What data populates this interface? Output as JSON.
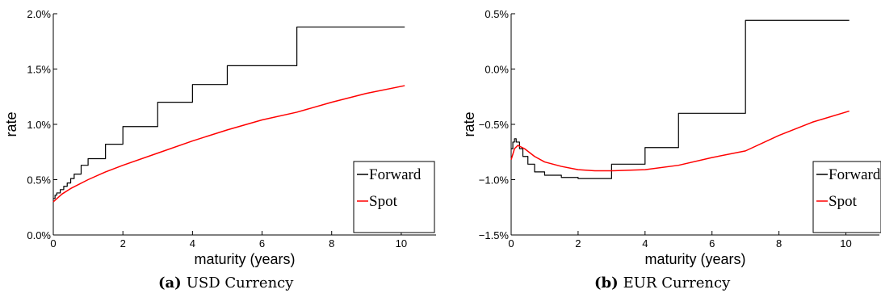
{
  "captions": [
    {
      "tag": "(a)",
      "text": "USD Currency"
    },
    {
      "tag": "(b)",
      "text": "EUR Currency"
    }
  ],
  "chart_data": [
    {
      "type": "line",
      "xlabel": "maturity (years)",
      "ylabel": "rate",
      "xlim": [
        0,
        11
      ],
      "ylim": [
        0.0,
        2.0
      ],
      "xticks": [
        0,
        2,
        4,
        6,
        8,
        10
      ],
      "xtick_labels": [
        "0",
        "2",
        "4",
        "6",
        "8",
        "10"
      ],
      "yticks": [
        0.0,
        0.5,
        1.0,
        1.5,
        2.0
      ],
      "ytick_labels": [
        "0.0%",
        "0.5%",
        "1.0%",
        "1.5%",
        "2.0%"
      ],
      "legend_position": "bottom-right",
      "grid": false,
      "series": [
        {
          "name": "Forward",
          "color": "#000000",
          "step": true,
          "x": [
            0,
            0.05,
            0.1,
            0.2,
            0.3,
            0.4,
            0.5,
            0.6,
            0.8,
            1.0,
            1.5,
            2.0,
            3.0,
            4.0,
            5.0,
            7.0,
            10.1
          ],
          "y": [
            0.33,
            0.36,
            0.38,
            0.41,
            0.44,
            0.47,
            0.51,
            0.55,
            0.63,
            0.69,
            0.82,
            0.98,
            1.2,
            1.36,
            1.53,
            1.88,
            1.88
          ]
        },
        {
          "name": "Spot",
          "color": "#ff0000",
          "step": false,
          "x": [
            0,
            0.25,
            0.5,
            1.0,
            1.5,
            2.0,
            3.0,
            4.0,
            5.0,
            6.0,
            7.0,
            8.0,
            9.0,
            10.1
          ],
          "y": [
            0.3,
            0.37,
            0.42,
            0.5,
            0.57,
            0.63,
            0.74,
            0.85,
            0.95,
            1.04,
            1.11,
            1.2,
            1.28,
            1.35
          ]
        }
      ]
    },
    {
      "type": "line",
      "xlabel": "maturity (years)",
      "ylabel": "rate",
      "xlim": [
        0,
        11
      ],
      "ylim": [
        -1.5,
        0.5
      ],
      "xticks": [
        0,
        2,
        4,
        6,
        8,
        10
      ],
      "xtick_labels": [
        "0",
        "2",
        "4",
        "6",
        "8",
        "10"
      ],
      "yticks": [
        -1.5,
        -1.0,
        -0.5,
        0.0,
        0.5
      ],
      "ytick_labels": [
        "−1.5%",
        "−1.0%",
        "−0.5%",
        "0.0%",
        "0.5%"
      ],
      "legend_position": "bottom-right",
      "grid": false,
      "series": [
        {
          "name": "Forward",
          "color": "#000000",
          "step": true,
          "x": [
            0,
            0.05,
            0.1,
            0.15,
            0.25,
            0.35,
            0.5,
            0.7,
            1.0,
            1.5,
            2.0,
            3.0,
            4.0,
            5.0,
            7.0,
            10.1
          ],
          "y": [
            -0.72,
            -0.66,
            -0.63,
            -0.66,
            -0.72,
            -0.79,
            -0.86,
            -0.93,
            -0.96,
            -0.98,
            -0.99,
            -0.86,
            -0.71,
            -0.4,
            0.44,
            0.44
          ]
        },
        {
          "name": "Spot",
          "color": "#ff0000",
          "step": false,
          "x": [
            0,
            0.1,
            0.2,
            0.4,
            0.7,
            1.0,
            1.5,
            2.0,
            2.5,
            3.0,
            4.0,
            5.0,
            6.0,
            7.0,
            8.0,
            9.0,
            10.1
          ],
          "y": [
            -0.82,
            -0.72,
            -0.69,
            -0.72,
            -0.79,
            -0.84,
            -0.88,
            -0.91,
            -0.92,
            -0.92,
            -0.91,
            -0.87,
            -0.8,
            -0.74,
            -0.6,
            -0.48,
            -0.38
          ]
        }
      ]
    }
  ]
}
